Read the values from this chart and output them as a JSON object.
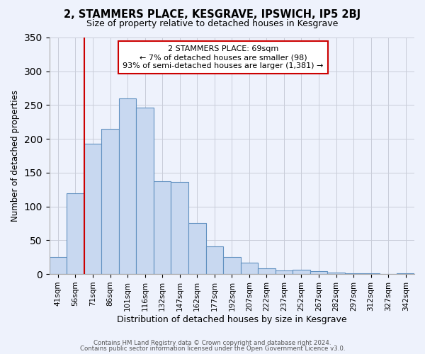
{
  "title": "2, STAMMERS PLACE, KESGRAVE, IPSWICH, IP5 2BJ",
  "subtitle": "Size of property relative to detached houses in Kesgrave",
  "xlabel": "Distribution of detached houses by size in Kesgrave",
  "ylabel": "Number of detached properties",
  "bar_color": "#c8d8f0",
  "bar_edge_color": "#6090c0",
  "bg_color": "#eef2fc",
  "categories": [
    "41sqm",
    "56sqm",
    "71sqm",
    "86sqm",
    "101sqm",
    "116sqm",
    "132sqm",
    "147sqm",
    "162sqm",
    "177sqm",
    "192sqm",
    "207sqm",
    "222sqm",
    "237sqm",
    "252sqm",
    "267sqm",
    "282sqm",
    "297sqm",
    "312sqm",
    "327sqm",
    "342sqm"
  ],
  "values": [
    25,
    120,
    193,
    215,
    260,
    246,
    137,
    136,
    76,
    41,
    25,
    17,
    9,
    5,
    6,
    4,
    2,
    1,
    1,
    0,
    1
  ],
  "vline_index": 2,
  "vline_color": "#cc0000",
  "annotation_title": "2 STAMMERS PLACE: 69sqm",
  "annotation_line1": "← 7% of detached houses are smaller (98)",
  "annotation_line2": "93% of semi-detached houses are larger (1,381) →",
  "annotation_box_edge": "#cc0000",
  "ylim": [
    0,
    350
  ],
  "yticks": [
    0,
    50,
    100,
    150,
    200,
    250,
    300,
    350
  ],
  "grid_color": "#c8ccd8",
  "footer1": "Contains HM Land Registry data © Crown copyright and database right 2024.",
  "footer2": "Contains public sector information licensed under the Open Government Licence v3.0."
}
